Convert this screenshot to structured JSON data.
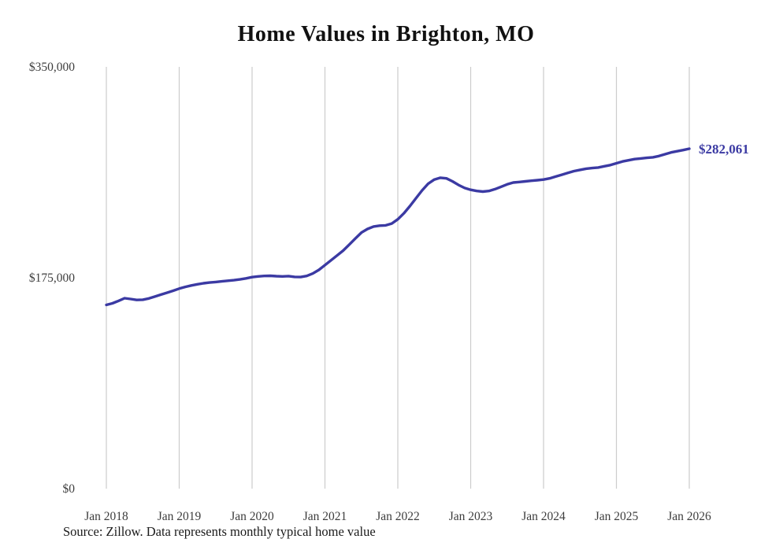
{
  "title": "Home Values in Brighton, MO",
  "source_note": "Source: Zillow. Data represents monthly typical home value",
  "end_label": "$282,061",
  "colors": {
    "line": "#3b3aa3",
    "grid": "#cccccc",
    "tick_text": "#3d3d3d",
    "title_text": "#111111"
  },
  "chart_data": {
    "type": "line",
    "title": "Home Values in Brighton, MO",
    "frequency": "monthly",
    "x_start": "Jan 2018",
    "x_end": "Jan 2026",
    "ylim": [
      0,
      350000
    ],
    "grid": "vertical-only",
    "legend": "none",
    "end_value": 282061,
    "y_ticks": [
      {
        "value": 0,
        "label": "$0"
      },
      {
        "value": 175000,
        "label": "$175,000"
      },
      {
        "value": 350000,
        "label": "$350,000"
      }
    ],
    "x_ticks": [
      {
        "month_index": 0,
        "label": "Jan 2018"
      },
      {
        "month_index": 12,
        "label": "Jan 2019"
      },
      {
        "month_index": 24,
        "label": "Jan 2020"
      },
      {
        "month_index": 36,
        "label": "Jan 2021"
      },
      {
        "month_index": 48,
        "label": "Jan 2022"
      },
      {
        "month_index": 60,
        "label": "Jan 2023"
      },
      {
        "month_index": 72,
        "label": "Jan 2024"
      },
      {
        "month_index": 84,
        "label": "Jan 2025"
      },
      {
        "month_index": 96,
        "label": "Jan 2026"
      }
    ],
    "series": [
      {
        "name": "Typical home value",
        "values": [
          152500,
          153800,
          155800,
          158000,
          157400,
          156600,
          156800,
          157800,
          159400,
          161000,
          162600,
          164200,
          166000,
          167400,
          168600,
          169600,
          170400,
          171000,
          171500,
          172000,
          172500,
          173000,
          173600,
          174500,
          175500,
          176100,
          176500,
          176600,
          176300,
          176100,
          176400,
          175700,
          175600,
          176500,
          178500,
          181500,
          185500,
          189500,
          193500,
          197500,
          202500,
          207500,
          212500,
          215500,
          217500,
          218200,
          218500,
          220000,
          223500,
          228500,
          234500,
          241000,
          247500,
          253000,
          256500,
          258000,
          257500,
          255000,
          252000,
          249500,
          248000,
          247000,
          246500,
          247000,
          248500,
          250500,
          252500,
          254000,
          254500,
          255000,
          255500,
          256000,
          256500,
          257500,
          259000,
          260500,
          262000,
          263500,
          264500,
          265500,
          266000,
          266500,
          267500,
          268500,
          270000,
          271500,
          272500,
          273500,
          274000,
          274500,
          275000,
          276000,
          277500,
          279000,
          280000,
          281000,
          282061
        ]
      }
    ]
  }
}
